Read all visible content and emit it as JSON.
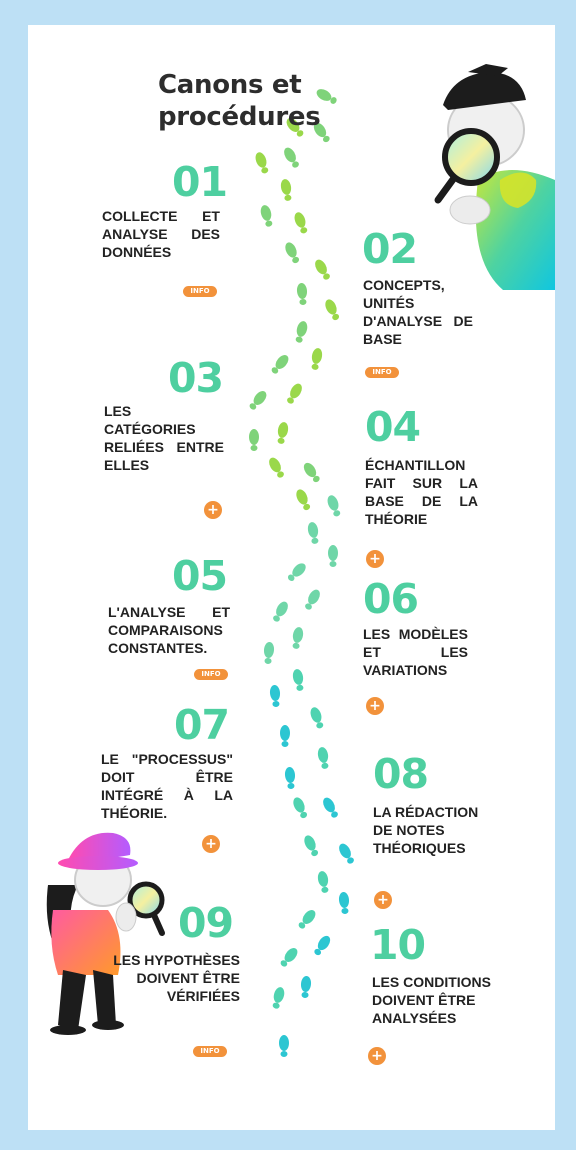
{
  "title": "Canons et procédures",
  "colors": {
    "accent": "#4ecfa0",
    "button": "#f2923b",
    "frame": "#bde0f5",
    "text": "#222222"
  },
  "steps": [
    {
      "number": "01",
      "text": "COLLECTE ET ANALYSE DES DONNÉES",
      "control": "INFO"
    },
    {
      "number": "02",
      "text": "CONCEPTS, UNITÉS D'ANALYSE DE BASE",
      "control": "INFO"
    },
    {
      "number": "03",
      "text": "LES CATÉGORIES RELIÉES ENTRE ELLES",
      "control": "+"
    },
    {
      "number": "04",
      "text": "ÉCHANTILLON FAIT SUR LA BASE DE LA THÉORIE",
      "control": "+"
    },
    {
      "number": "05",
      "text": "L'ANALYSE ET COMPARAISONS CONSTANTES.",
      "control": "INFO"
    },
    {
      "number": "06",
      "text": "LES MODÈLES ET LES VARIATIONS",
      "control": "+"
    },
    {
      "number": "07",
      "text": "LE \"PROCESSUS\" DOIT ÊTRE INTÉGRÉ À LA THÉORIE.",
      "control": "+"
    },
    {
      "number": "08",
      "text": "LA RÉDACTION DE NOTES THÉORIQUES",
      "control": "+"
    },
    {
      "number": "09",
      "text": "LES HYPOTHÈSES DOIVENT ÊTRE VÉRIFIÉES",
      "control": "INFO"
    },
    {
      "number": "10",
      "text": "LES CONDITIONS DOIVENT ÊTRE ANALYSÉES",
      "control": "+"
    }
  ],
  "icons": {
    "detective_top": "detective-magnifier-illustration",
    "detective_bottom": "detective-magnifier-illustration",
    "footprints": "footprints-trail"
  }
}
